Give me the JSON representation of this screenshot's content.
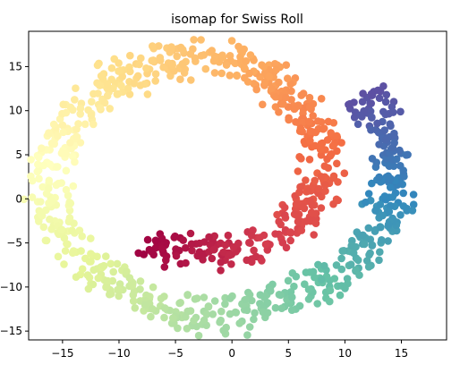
{
  "chart_data": {
    "type": "scatter",
    "title": "isomap for Swiss Roll",
    "xlabel": "",
    "ylabel": "",
    "xlim": [
      -18,
      19
    ],
    "ylim": [
      -16,
      19
    ],
    "grid": false,
    "xticks": [
      -15,
      -10,
      -5,
      0,
      5,
      10,
      15
    ],
    "xtick_labels": [
      "−15",
      "−10",
      "−5",
      "0",
      "5",
      "10",
      "15"
    ],
    "yticks": [
      -15,
      -10,
      -5,
      0,
      5,
      10,
      15
    ],
    "ytick_labels": [
      "−15",
      "−10",
      "−5",
      "0",
      "5",
      "10",
      "15"
    ],
    "colormap": "Spectral",
    "color_range": [
      "#9e0142",
      "#5e4fa2"
    ],
    "point_count": 1000,
    "structure": "spiral: inner end near (-8,-4) dark red, arcs through orange at (8,5), yellow at top (0,16), yellow-green left (-15,5), green bottom (-5,-12), teal (8,-10), ending blue-purple upper right (13,12)"
  }
}
